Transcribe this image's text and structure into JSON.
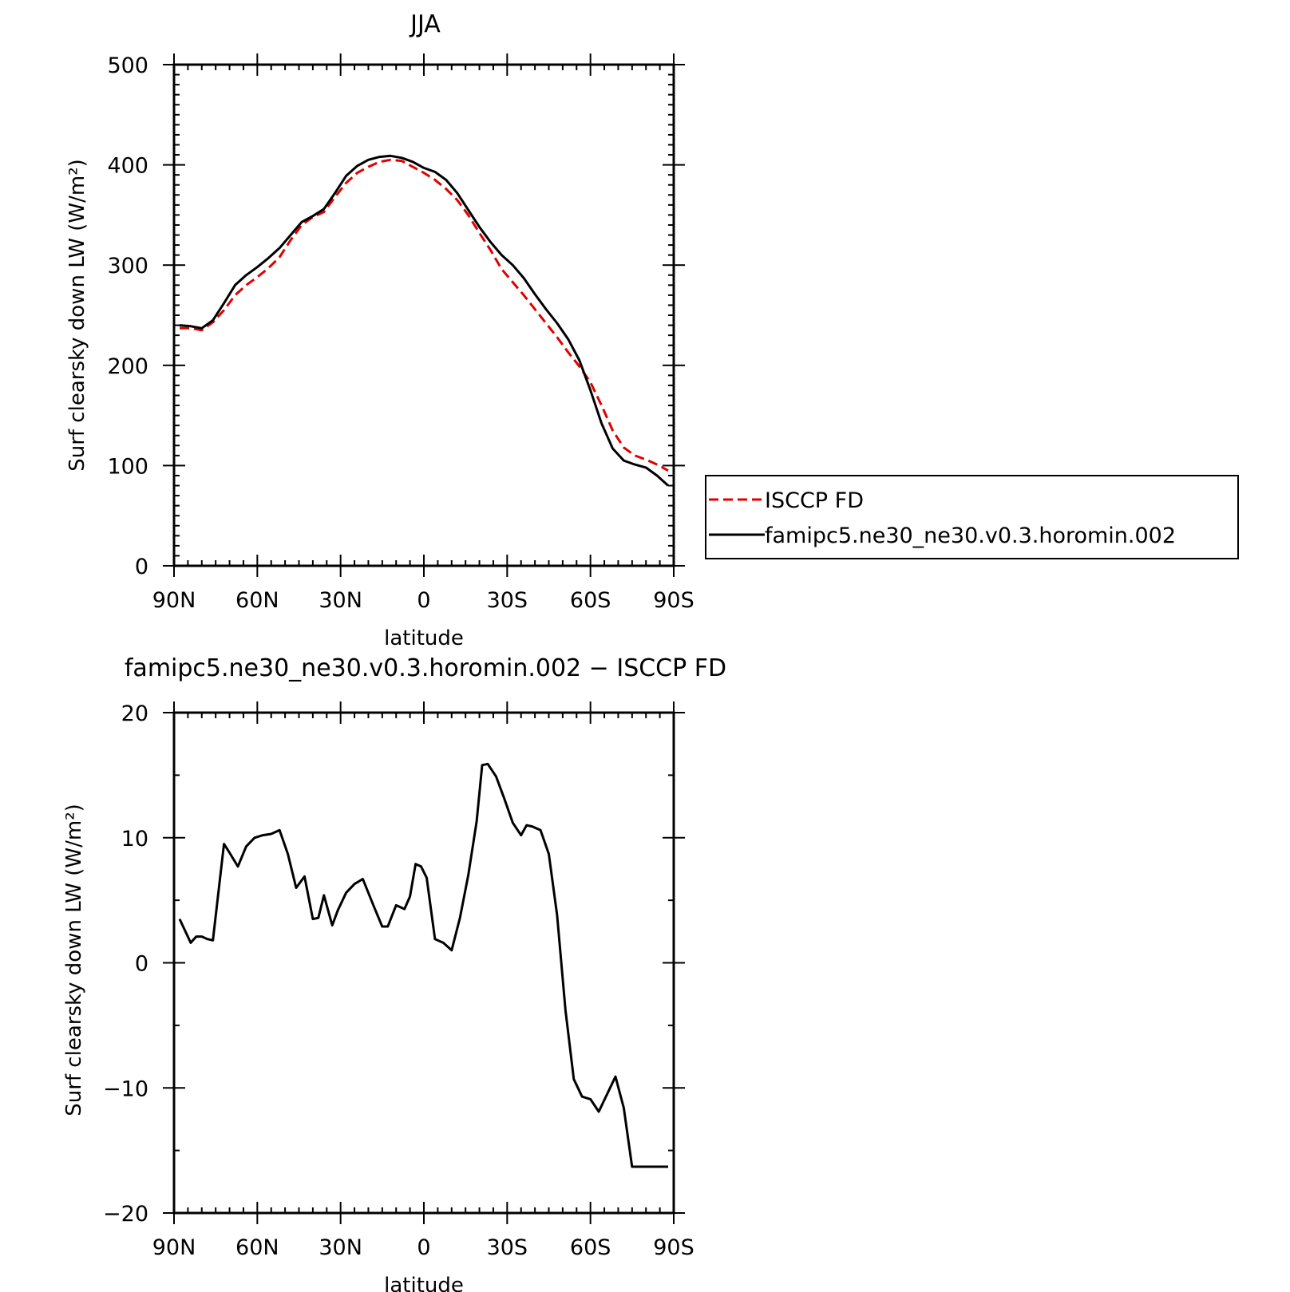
{
  "chart_data": [
    {
      "type": "line",
      "title": "JJA",
      "xlabel": "latitude",
      "ylabel": "Surf clearsky down LW (W/m²)",
      "xlim": [
        90,
        -90
      ],
      "ylim": [
        0,
        500
      ],
      "xticks": [
        90,
        60,
        30,
        0,
        -30,
        -60,
        -90
      ],
      "xtick_labels": [
        "90N",
        "60N",
        "30N",
        "0",
        "30S",
        "60S",
        "90S"
      ],
      "yticks": [
        0,
        100,
        200,
        300,
        400,
        500
      ],
      "ytick_labels": [
        "0",
        "100",
        "200",
        "300",
        "400",
        "500"
      ],
      "legend": {
        "placement": "right",
        "entries": [
          "ISCCP FD",
          "famipc5.ne30_ne30.v0.3.horomin.002"
        ]
      },
      "series": [
        {
          "name": "ISCCP FD",
          "color": "#e00000",
          "style": "dashed",
          "x": [
            88,
            84,
            80,
            76,
            72,
            68,
            64,
            60,
            56,
            52,
            48,
            44,
            40,
            36,
            32,
            28,
            24,
            20,
            16,
            12,
            8,
            4,
            0,
            -4,
            -8,
            -12,
            -16,
            -20,
            -24,
            -28,
            -32,
            -36,
            -40,
            -44,
            -48,
            -52,
            -56,
            -60,
            -64,
            -68,
            -72,
            -76,
            -80,
            -84,
            -88
          ],
          "values": [
            237,
            237,
            235,
            243,
            255,
            270,
            280,
            288,
            297,
            308,
            325,
            340,
            348,
            353,
            368,
            382,
            392,
            398,
            403,
            405,
            404,
            398,
            392,
            385,
            376,
            365,
            350,
            332,
            315,
            296,
            283,
            270,
            256,
            242,
            228,
            213,
            199,
            183,
            160,
            135,
            118,
            110,
            106,
            101,
            95
          ]
        },
        {
          "name": "famipc5.ne30_ne30.v0.3.horomin.002",
          "color": "#000000",
          "style": "solid",
          "x": [
            88,
            84,
            80,
            76,
            72,
            68,
            64,
            60,
            56,
            52,
            48,
            44,
            40,
            36,
            32,
            28,
            24,
            20,
            16,
            12,
            8,
            4,
            0,
            -4,
            -8,
            -12,
            -16,
            -20,
            -24,
            -28,
            -32,
            -36,
            -40,
            -44,
            -48,
            -52,
            -56,
            -60,
            -64,
            -68,
            -72,
            -76,
            -80,
            -84,
            -88
          ],
          "values": [
            240,
            239,
            237,
            245,
            262,
            280,
            290,
            298,
            307,
            317,
            330,
            343,
            349,
            356,
            372,
            389,
            399,
            405,
            408,
            409,
            407,
            403,
            397,
            393,
            385,
            372,
            355,
            338,
            323,
            310,
            300,
            287,
            271,
            256,
            242,
            226,
            205,
            175,
            142,
            117,
            105,
            101,
            98,
            90,
            80
          ]
        }
      ]
    },
    {
      "type": "line",
      "title": "famipc5.ne30_ne30.v0.3.horomin.002 − ISCCP FD",
      "xlabel": "latitude",
      "ylabel": "Surf clearsky down LW (W/m²)",
      "xlim": [
        90,
        -90
      ],
      "ylim": [
        -20,
        20
      ],
      "xticks": [
        90,
        60,
        30,
        0,
        -30,
        -60,
        -90
      ],
      "xtick_labels": [
        "90N",
        "60N",
        "30N",
        "0",
        "30S",
        "60S",
        "90S"
      ],
      "yticks": [
        -20,
        -10,
        0,
        10,
        20
      ],
      "ytick_labels": [
        "−20",
        "−10",
        "0",
        "10",
        "20"
      ],
      "series": [
        {
          "color": "#000000",
          "style": "solid",
          "x": [
            88,
            84,
            82,
            80,
            78,
            76,
            72,
            70,
            67,
            64,
            61,
            58,
            55,
            52,
            49,
            46,
            43,
            40,
            38,
            36,
            33,
            31,
            28,
            25,
            22,
            18,
            15,
            13,
            10,
            7,
            5,
            3,
            1,
            -1,
            -4,
            -7,
            -10,
            -13,
            -16,
            -19,
            -21,
            -23,
            -26,
            -29,
            -32,
            -35,
            -37,
            -39,
            -42,
            -45,
            -48,
            -51,
            -54,
            -57,
            -60,
            -63,
            -66,
            -69,
            -72,
            -75,
            -78,
            -81,
            -84,
            -86,
            -88
          ],
          "values": [
            3.5,
            1.6,
            2.1,
            2.1,
            1.9,
            1.8,
            9.5,
            8.8,
            7.7,
            9.3,
            10.0,
            10.2,
            10.3,
            10.6,
            8.7,
            6.0,
            6.9,
            3.5,
            3.6,
            5.4,
            3.0,
            4.2,
            5.6,
            6.3,
            6.7,
            4.5,
            2.9,
            2.9,
            4.6,
            4.3,
            5.3,
            7.9,
            7.7,
            6.8,
            1.9,
            1.6,
            1.0,
            3.6,
            7.0,
            11.3,
            15.8,
            15.9,
            14.9,
            13.1,
            11.2,
            10.2,
            11.0,
            10.9,
            10.6,
            8.7,
            3.8,
            -3.8,
            -9.3,
            -10.7,
            -10.9,
            -11.9,
            -10.5,
            -9.1,
            -11.6,
            -16.3,
            -16.3,
            -16.3,
            -16.3,
            -16.3,
            -16.3
          ]
        }
      ]
    }
  ]
}
